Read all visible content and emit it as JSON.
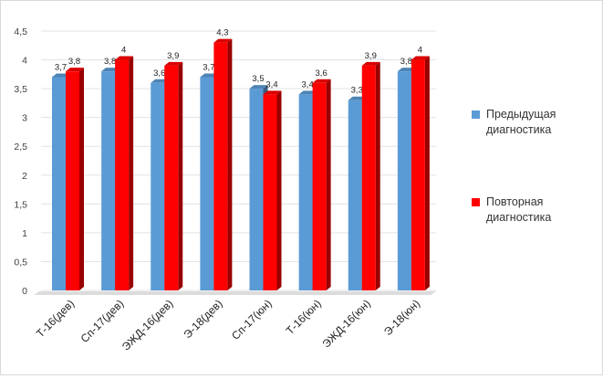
{
  "chart_data": {
    "type": "bar",
    "title": "",
    "xlabel": "",
    "ylabel": "",
    "ylim": [
      0,
      4.5
    ],
    "yticks": [
      "0",
      "0,5",
      "1",
      "1,5",
      "2",
      "2,5",
      "3",
      "3,5",
      "4",
      "4,5"
    ],
    "categories": [
      "Т-16(дев)",
      "Сп-17(дев)",
      "ЭЖД-16(дев)",
      "Э-18(дев)",
      "Сп-17(юн)",
      "Т-16(юн)",
      "ЭЖД-16(юн)",
      "Э-18(юн)"
    ],
    "series": [
      {
        "name": "Предыдущая диагностика",
        "color": "#5b9bd5",
        "values": [
          3.7,
          3.8,
          3.6,
          3.7,
          3.5,
          3.4,
          3.3,
          3.8
        ],
        "labels": [
          "3,7",
          "3,8",
          "3,6",
          "3,7",
          "3,5",
          "3,4",
          "3,3",
          "3,8"
        ]
      },
      {
        "name": "Повторная диагностика",
        "color": "#ff0000",
        "values": [
          3.8,
          4,
          3.9,
          4.3,
          3.4,
          3.6,
          3.9,
          4
        ],
        "labels": [
          "3,8",
          "4",
          "3,9",
          "4,3",
          "3,4",
          "3,6",
          "3,9",
          "4"
        ]
      }
    ],
    "grid": true,
    "legend_position": "right",
    "style": "3d-columns"
  },
  "legend": [
    {
      "line1": "Предыдущая",
      "line2": "диагностика",
      "color": "#5b9bd5"
    },
    {
      "line1": "Повторная",
      "line2": "диагностика",
      "color": "#ff0000"
    }
  ]
}
